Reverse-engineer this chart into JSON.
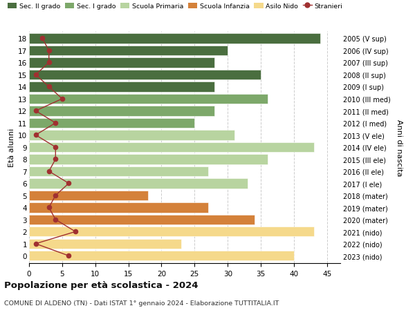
{
  "ages": [
    18,
    17,
    16,
    15,
    14,
    13,
    12,
    11,
    10,
    9,
    8,
    7,
    6,
    5,
    4,
    3,
    2,
    1,
    0
  ],
  "years": [
    "2005 (V sup)",
    "2006 (IV sup)",
    "2007 (III sup)",
    "2008 (II sup)",
    "2009 (I sup)",
    "2010 (III med)",
    "2011 (II med)",
    "2012 (I med)",
    "2013 (V ele)",
    "2014 (IV ele)",
    "2015 (III ele)",
    "2016 (II ele)",
    "2017 (I ele)",
    "2018 (mater)",
    "2019 (mater)",
    "2020 (mater)",
    "2021 (nido)",
    "2022 (nido)",
    "2023 (nido)"
  ],
  "bar_values": [
    44,
    30,
    28,
    35,
    28,
    36,
    28,
    25,
    31,
    43,
    36,
    27,
    33,
    18,
    27,
    34,
    43,
    23,
    40
  ],
  "bar_colors": [
    "#4a6e3f",
    "#4a6e3f",
    "#4a6e3f",
    "#4a6e3f",
    "#4a6e3f",
    "#7da86a",
    "#7da86a",
    "#7da86a",
    "#b8d4a0",
    "#b8d4a0",
    "#b8d4a0",
    "#b8d4a0",
    "#b8d4a0",
    "#d4813a",
    "#d4813a",
    "#d4813a",
    "#f5d98b",
    "#f5d98b",
    "#f5d98b"
  ],
  "stranieri_values": [
    2,
    3,
    3,
    1,
    3,
    5,
    1,
    4,
    1,
    4,
    4,
    3,
    6,
    4,
    3,
    4,
    7,
    1,
    6
  ],
  "stranieri_color": "#a03030",
  "legend_labels": [
    "Sec. II grado",
    "Sec. I grado",
    "Scuola Primaria",
    "Scuola Infanzia",
    "Asilo Nido",
    "Stranieri"
  ],
  "legend_colors": [
    "#4a6e3f",
    "#7da86a",
    "#b8d4a0",
    "#d4813a",
    "#f5d98b",
    "#a03030"
  ],
  "ylabel_left": "Età alunni",
  "ylabel_right": "Anni di nascita",
  "title": "Popolazione per età scolastica - 2024",
  "subtitle": "COMUNE DI ALDENO (TN) - Dati ISTAT 1° gennaio 2024 - Elaborazione TUTTITALIA.IT",
  "xlim": [
    0,
    47
  ],
  "xticks": [
    0,
    5,
    10,
    15,
    20,
    25,
    30,
    35,
    40,
    45
  ],
  "bg_color": "#ffffff",
  "grid_color": "#cccccc"
}
